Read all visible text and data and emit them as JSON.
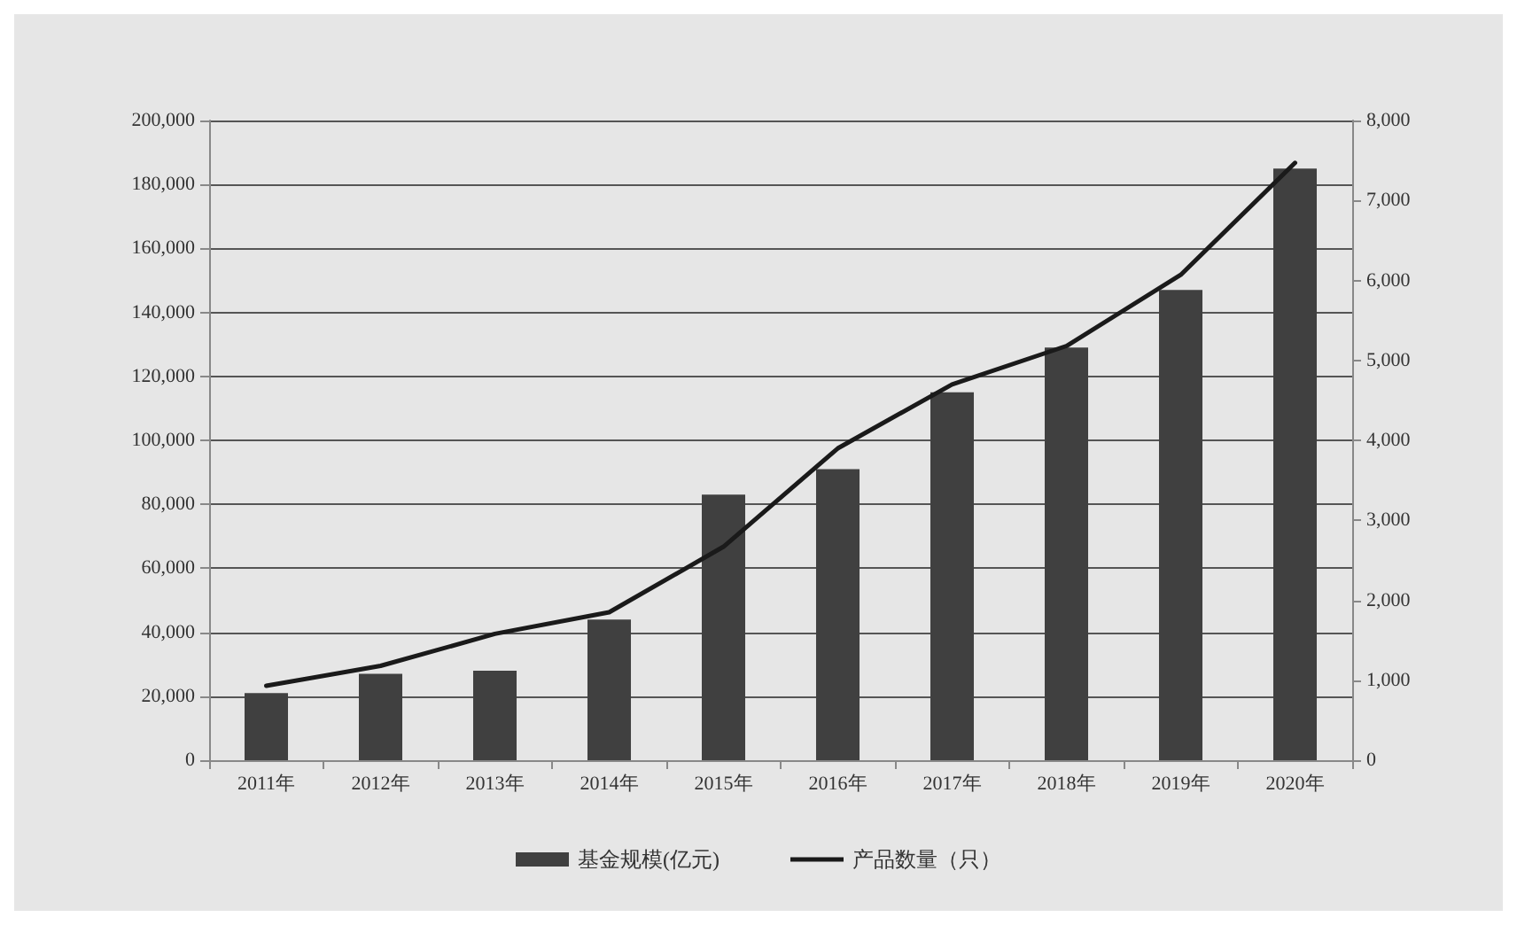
{
  "chart_data": {
    "type": "bar",
    "categories": [
      "2011年",
      "2012年",
      "2013年",
      "2014年",
      "2015年",
      "2016年",
      "2017年",
      "2018年",
      "2019年",
      "2020年"
    ],
    "series": [
      {
        "name": "基金规模(亿元)",
        "color": "#404040",
        "values": [
          21000,
          27000,
          28000,
          44000,
          83000,
          91000,
          115000,
          129000,
          147000,
          185000
        ]
      },
      {
        "name": "产品数量（只）",
        "type": "line",
        "axis": "y2",
        "color": "#1a1a1a",
        "values": [
          930,
          1180,
          1580,
          1850,
          2670,
          3900,
          4700,
          5180,
          6070,
          7470
        ]
      }
    ],
    "ylim": [
      0,
      200000
    ],
    "yticks": [
      0,
      {
        "value": 20000,
        "label": "20,000"
      },
      {
        "value": 40000,
        "label": "40,000"
      },
      {
        "value": 60000,
        "label": "60,000"
      },
      {
        "value": 80000,
        "label": "80,000"
      },
      {
        "value": 100000,
        "label": "100,000"
      },
      {
        "value": 120000,
        "label": "120,000"
      },
      {
        "value": 140000,
        "label": "140,000"
      },
      {
        "value": 160000,
        "label": "160,000"
      },
      {
        "value": 180000,
        "label": "180,000"
      },
      {
        "value": 200000,
        "label": "200,000"
      }
    ],
    "y2lim": [
      0,
      8000
    ],
    "y2ticks": [
      0,
      {
        "value": 1000,
        "label": "1,000"
      },
      {
        "value": 2000,
        "label": "2,000"
      },
      {
        "value": 3000,
        "label": "3,000"
      },
      {
        "value": 4000,
        "label": "4,000"
      },
      {
        "value": 5000,
        "label": "5,000"
      },
      {
        "value": 6000,
        "label": "6,000"
      },
      {
        "value": 7000,
        "label": "7,000"
      },
      {
        "value": 8000,
        "label": "8,000"
      }
    ],
    "grid": "y",
    "legend": "bottom",
    "marker": "none",
    "line_style": "solid"
  }
}
